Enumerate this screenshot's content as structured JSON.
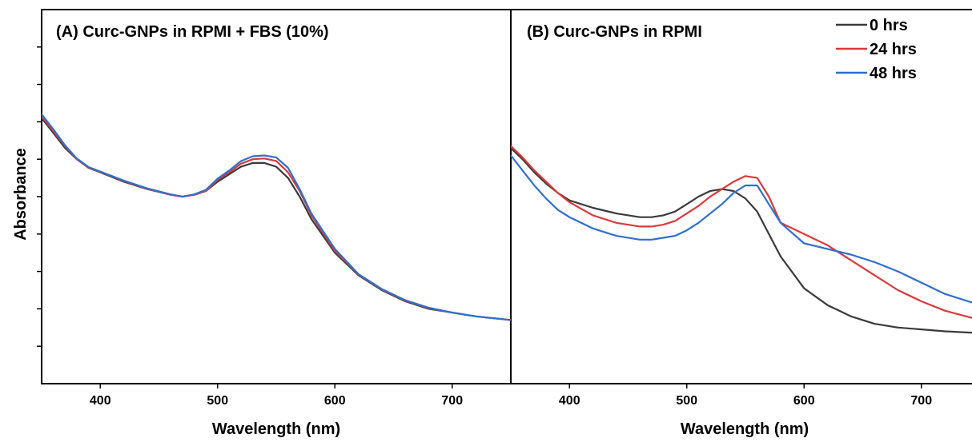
{
  "ylabel": "Absorbance",
  "colors": {
    "0 hrs": "#3a3a3a",
    "24 hrs": "#d93a3a",
    "48 hrs": "#2f6fcf"
  },
  "legend": [
    {
      "name": "0 hrs",
      "color": "#3a3a3a"
    },
    {
      "name": "24 hrs",
      "color": "#d93a3a"
    },
    {
      "name": "48 hrs",
      "color": "#2f6fcf"
    }
  ],
  "chart_data": [
    {
      "type": "line",
      "title": "(A) Curc-GNPs in RPMI + FBS (10%)",
      "xlabel": "Wavelength (nm)",
      "ylabel": "Absorbance",
      "xlim": [
        350,
        750
      ],
      "ylim": [
        0,
        1
      ],
      "xticks": [
        400,
        500,
        600,
        700
      ],
      "yticks": [
        0.1,
        0.2,
        0.3,
        0.4,
        0.5,
        0.6,
        0.7,
        0.8,
        0.9
      ],
      "y_tick_labels_shown": false,
      "grid": false,
      "series": [
        {
          "name": "0 hrs",
          "x": [
            350,
            360,
            370,
            380,
            390,
            400,
            420,
            440,
            460,
            470,
            480,
            490,
            500,
            510,
            520,
            530,
            540,
            550,
            560,
            570,
            580,
            600,
            620,
            640,
            660,
            680,
            700,
            720,
            750
          ],
          "y": [
            0.71,
            0.67,
            0.63,
            0.6,
            0.577,
            0.565,
            0.54,
            0.52,
            0.505,
            0.5,
            0.505,
            0.515,
            0.54,
            0.56,
            0.58,
            0.59,
            0.59,
            0.58,
            0.55,
            0.5,
            0.44,
            0.35,
            0.29,
            0.25,
            0.22,
            0.2,
            0.19,
            0.18,
            0.17
          ]
        },
        {
          "name": "24 hrs",
          "x": [
            350,
            360,
            370,
            380,
            390,
            400,
            420,
            440,
            460,
            470,
            480,
            490,
            500,
            510,
            520,
            530,
            540,
            550,
            560,
            570,
            580,
            600,
            620,
            640,
            660,
            680,
            700,
            720,
            750
          ],
          "y": [
            0.715,
            0.675,
            0.635,
            0.6,
            0.578,
            0.566,
            0.542,
            0.521,
            0.505,
            0.5,
            0.505,
            0.515,
            0.545,
            0.565,
            0.588,
            0.6,
            0.602,
            0.595,
            0.565,
            0.515,
            0.45,
            0.355,
            0.292,
            0.252,
            0.222,
            0.202,
            0.19,
            0.18,
            0.17
          ]
        },
        {
          "name": "48 hrs",
          "x": [
            350,
            360,
            370,
            380,
            390,
            400,
            420,
            440,
            460,
            470,
            480,
            490,
            500,
            510,
            520,
            530,
            540,
            550,
            560,
            570,
            580,
            600,
            620,
            640,
            660,
            680,
            700,
            720,
            750
          ],
          "y": [
            0.72,
            0.68,
            0.637,
            0.602,
            0.579,
            0.567,
            0.543,
            0.522,
            0.506,
            0.5,
            0.506,
            0.518,
            0.548,
            0.57,
            0.595,
            0.608,
            0.61,
            0.605,
            0.577,
            0.52,
            0.455,
            0.36,
            0.293,
            0.253,
            0.223,
            0.203,
            0.19,
            0.18,
            0.17
          ]
        }
      ]
    },
    {
      "type": "line",
      "title": "(B) Curc-GNPs in RPMI",
      "xlabel": "Wavelength (nm)",
      "ylabel": "Absorbance",
      "xlim": [
        350,
        750
      ],
      "ylim": [
        0,
        1
      ],
      "xticks": [
        400,
        500,
        600,
        700
      ],
      "yticks": [],
      "legend_position": "top-right",
      "grid": false,
      "series": [
        {
          "name": "0 hrs",
          "x": [
            350,
            360,
            370,
            380,
            390,
            400,
            420,
            440,
            460,
            470,
            480,
            490,
            500,
            510,
            520,
            530,
            540,
            550,
            560,
            570,
            580,
            600,
            620,
            640,
            660,
            680,
            700,
            720,
            750
          ],
          "y": [
            0.63,
            0.6,
            0.565,
            0.535,
            0.51,
            0.49,
            0.47,
            0.455,
            0.445,
            0.445,
            0.45,
            0.46,
            0.48,
            0.5,
            0.515,
            0.52,
            0.515,
            0.495,
            0.46,
            0.4,
            0.34,
            0.255,
            0.21,
            0.18,
            0.16,
            0.15,
            0.145,
            0.14,
            0.135
          ]
        },
        {
          "name": "24 hrs",
          "x": [
            350,
            360,
            370,
            380,
            390,
            400,
            420,
            440,
            460,
            470,
            480,
            490,
            500,
            510,
            520,
            530,
            540,
            550,
            560,
            570,
            580,
            600,
            620,
            640,
            660,
            680,
            700,
            720,
            750
          ],
          "y": [
            0.635,
            0.605,
            0.57,
            0.54,
            0.51,
            0.485,
            0.45,
            0.43,
            0.42,
            0.42,
            0.425,
            0.435,
            0.455,
            0.475,
            0.5,
            0.52,
            0.54,
            0.555,
            0.55,
            0.5,
            0.43,
            0.4,
            0.37,
            0.33,
            0.29,
            0.25,
            0.22,
            0.195,
            0.17
          ]
        },
        {
          "name": "48 hrs",
          "x": [
            350,
            360,
            370,
            380,
            390,
            400,
            420,
            440,
            460,
            470,
            480,
            490,
            500,
            510,
            520,
            530,
            540,
            550,
            560,
            570,
            580,
            600,
            620,
            640,
            660,
            680,
            700,
            720,
            750
          ],
          "y": [
            0.61,
            0.57,
            0.53,
            0.495,
            0.465,
            0.445,
            0.415,
            0.395,
            0.385,
            0.385,
            0.39,
            0.395,
            0.41,
            0.43,
            0.455,
            0.48,
            0.51,
            0.53,
            0.53,
            0.48,
            0.43,
            0.375,
            0.36,
            0.345,
            0.325,
            0.3,
            0.27,
            0.24,
            0.21
          ]
        }
      ]
    }
  ]
}
